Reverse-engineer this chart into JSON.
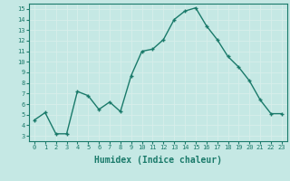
{
  "x": [
    0,
    1,
    2,
    3,
    4,
    5,
    6,
    7,
    8,
    9,
    10,
    11,
    12,
    13,
    14,
    15,
    16,
    17,
    18,
    19,
    20,
    21,
    22,
    23
  ],
  "y": [
    4.5,
    5.2,
    3.2,
    3.2,
    7.2,
    6.8,
    5.5,
    6.2,
    5.3,
    8.7,
    11.0,
    11.2,
    12.1,
    14.0,
    14.8,
    15.1,
    13.4,
    12.1,
    10.5,
    9.5,
    8.2,
    6.4,
    5.1,
    5.1
  ],
  "line_color": "#1a7a6a",
  "marker": "+",
  "marker_size": 3,
  "xlabel": "Humidex (Indice chaleur)",
  "ylim": [
    2.5,
    15.5
  ],
  "xlim": [
    -0.5,
    23.5
  ],
  "yticks": [
    3,
    4,
    5,
    6,
    7,
    8,
    9,
    10,
    11,
    12,
    13,
    14,
    15
  ],
  "xticks": [
    0,
    1,
    2,
    3,
    4,
    5,
    6,
    7,
    8,
    9,
    10,
    11,
    12,
    13,
    14,
    15,
    16,
    17,
    18,
    19,
    20,
    21,
    22,
    23
  ],
  "background_color": "#c5e8e4",
  "grid_color": "#d8eeeb",
  "tick_color": "#1a7a6a",
  "label_color": "#1a7a6a",
  "font_size_tick": 5.0,
  "font_size_label": 7.0,
  "line_width": 1.0
}
